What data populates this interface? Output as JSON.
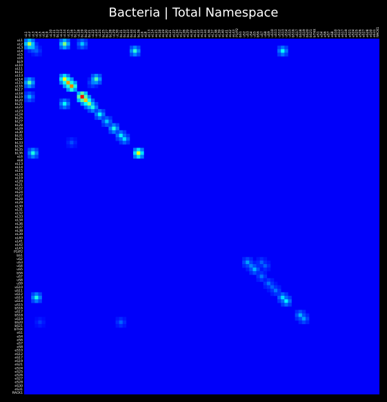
{
  "chart_data": {
    "type": "heatmap",
    "title": "Bacteria | Total Namespace",
    "colormap": "jet",
    "background": "#000000",
    "labels": [
      "uL1",
      "uL2",
      "uL3",
      "uL4",
      "uL5",
      "uL6",
      "bL9",
      "uL10",
      "uL11",
      "bL12",
      "uL13",
      "uL14",
      "uL15",
      "uL16",
      "bL17",
      "uL18",
      "bL19",
      "bL20",
      "bL21",
      "uL22",
      "uL23",
      "uL24",
      "bL25",
      "bL27",
      "bL28",
      "uL29",
      "uL30",
      "bL31",
      "bL32",
      "bL33",
      "bL34",
      "bL35",
      "bL36",
      "eL6",
      "eL8",
      "eL13",
      "eL14",
      "eL15",
      "eL18",
      "eL19",
      "eL20",
      "eL21",
      "eL22",
      "eL24",
      "eL27",
      "eL28",
      "eL29",
      "eL30",
      "eL31",
      "eL32",
      "eL33",
      "eL34",
      "eL36",
      "eL37",
      "eL38",
      "eL39",
      "eL40",
      "eL41",
      "eL42",
      "eL43",
      "P1/P2",
      "bS1",
      "uS2",
      "uS3",
      "uS4",
      "uS5",
      "bS6",
      "uS7",
      "uS8",
      "uS9",
      "uS10",
      "uS11",
      "uS12",
      "uS13",
      "uS14",
      "uS15",
      "bS16",
      "uS17",
      "bS18",
      "uS19",
      "bS20",
      "bS21",
      "bTHX",
      "eS1",
      "eS4",
      "eS6",
      "eS7",
      "eS8",
      "eS10",
      "eS12",
      "eS17",
      "eS19",
      "eS21",
      "eS24",
      "eS25",
      "eS26",
      "eS27",
      "eS28",
      "eS30",
      "eS31",
      "RACK1"
    ],
    "hotspots": [
      {
        "row": "uL2",
        "col": "uL2",
        "value": 0.55
      },
      {
        "row": "uL2",
        "col": "uL14",
        "value": 0.5
      },
      {
        "row": "uL2",
        "col": "bL19",
        "value": 0.32
      },
      {
        "row": "uL3",
        "col": "uL3",
        "value": 0.3
      },
      {
        "row": "uL4",
        "col": "uL4",
        "value": 0.22
      },
      {
        "row": "uL4",
        "col": "bL35",
        "value": 0.42
      },
      {
        "row": "uL4",
        "col": "uS13",
        "value": 0.38
      },
      {
        "row": "uL14",
        "col": "uL14",
        "value": 0.62
      },
      {
        "row": "uL15",
        "col": "uL15",
        "value": 0.72
      },
      {
        "row": "uL16",
        "col": "uL16",
        "value": 0.75
      },
      {
        "row": "uL14",
        "col": "uL23",
        "value": 0.45
      },
      {
        "row": "uL15",
        "col": "uL2",
        "value": 0.45
      },
      {
        "row": "uL15",
        "col": "uL22",
        "value": 0.25
      },
      {
        "row": "bL19",
        "col": "uL2",
        "value": 0.3
      },
      {
        "row": "bL19",
        "col": "bL19",
        "value": 0.88
      },
      {
        "row": "bL20",
        "col": "bL20",
        "value": 0.68
      },
      {
        "row": "bL21",
        "col": "bL21",
        "value": 0.52
      },
      {
        "row": "bL21",
        "col": "uL14",
        "value": 0.38
      },
      {
        "row": "uL22",
        "col": "uL22",
        "value": 0.4
      },
      {
        "row": "uL24",
        "col": "uL24",
        "value": 0.38
      },
      {
        "row": "bL27",
        "col": "bL27",
        "value": 0.32
      },
      {
        "row": "uL29",
        "col": "uL29",
        "value": 0.4
      },
      {
        "row": "bL31",
        "col": "bL31",
        "value": 0.36
      },
      {
        "row": "bL32",
        "col": "bL32",
        "value": 0.34
      },
      {
        "row": "bL36",
        "col": "bL36",
        "value": 0.62
      },
      {
        "row": "bL36",
        "col": "uL3",
        "value": 0.4
      },
      {
        "row": "bL33",
        "col": "uL16",
        "value": 0.2
      },
      {
        "row": "uS3",
        "col": "uS3",
        "value": 0.28
      },
      {
        "row": "uS4",
        "col": "uS4",
        "value": 0.25
      },
      {
        "row": "uS5",
        "col": "uS5",
        "value": 0.3
      },
      {
        "row": "uS3",
        "col": "uS7",
        "value": 0.22
      },
      {
        "row": "uS4",
        "col": "uS8",
        "value": 0.22
      },
      {
        "row": "uS7",
        "col": "uS7",
        "value": 0.24
      },
      {
        "row": "uS9",
        "col": "uS9",
        "value": 0.24
      },
      {
        "row": "uS10",
        "col": "uS10",
        "value": 0.22
      },
      {
        "row": "uS11",
        "col": "uS11",
        "value": 0.24
      },
      {
        "row": "uS13",
        "col": "uS13",
        "value": 0.34
      },
      {
        "row": "uS14",
        "col": "uS14",
        "value": 0.36
      },
      {
        "row": "uS13",
        "col": "uL4",
        "value": 0.4
      },
      {
        "row": "bS18",
        "col": "bS18",
        "value": 0.3
      },
      {
        "row": "uS19",
        "col": "uS19",
        "value": 0.28
      },
      {
        "row": "bS20",
        "col": "bL31",
        "value": 0.22
      },
      {
        "row": "bS20",
        "col": "uL5",
        "value": 0.18
      }
    ]
  }
}
